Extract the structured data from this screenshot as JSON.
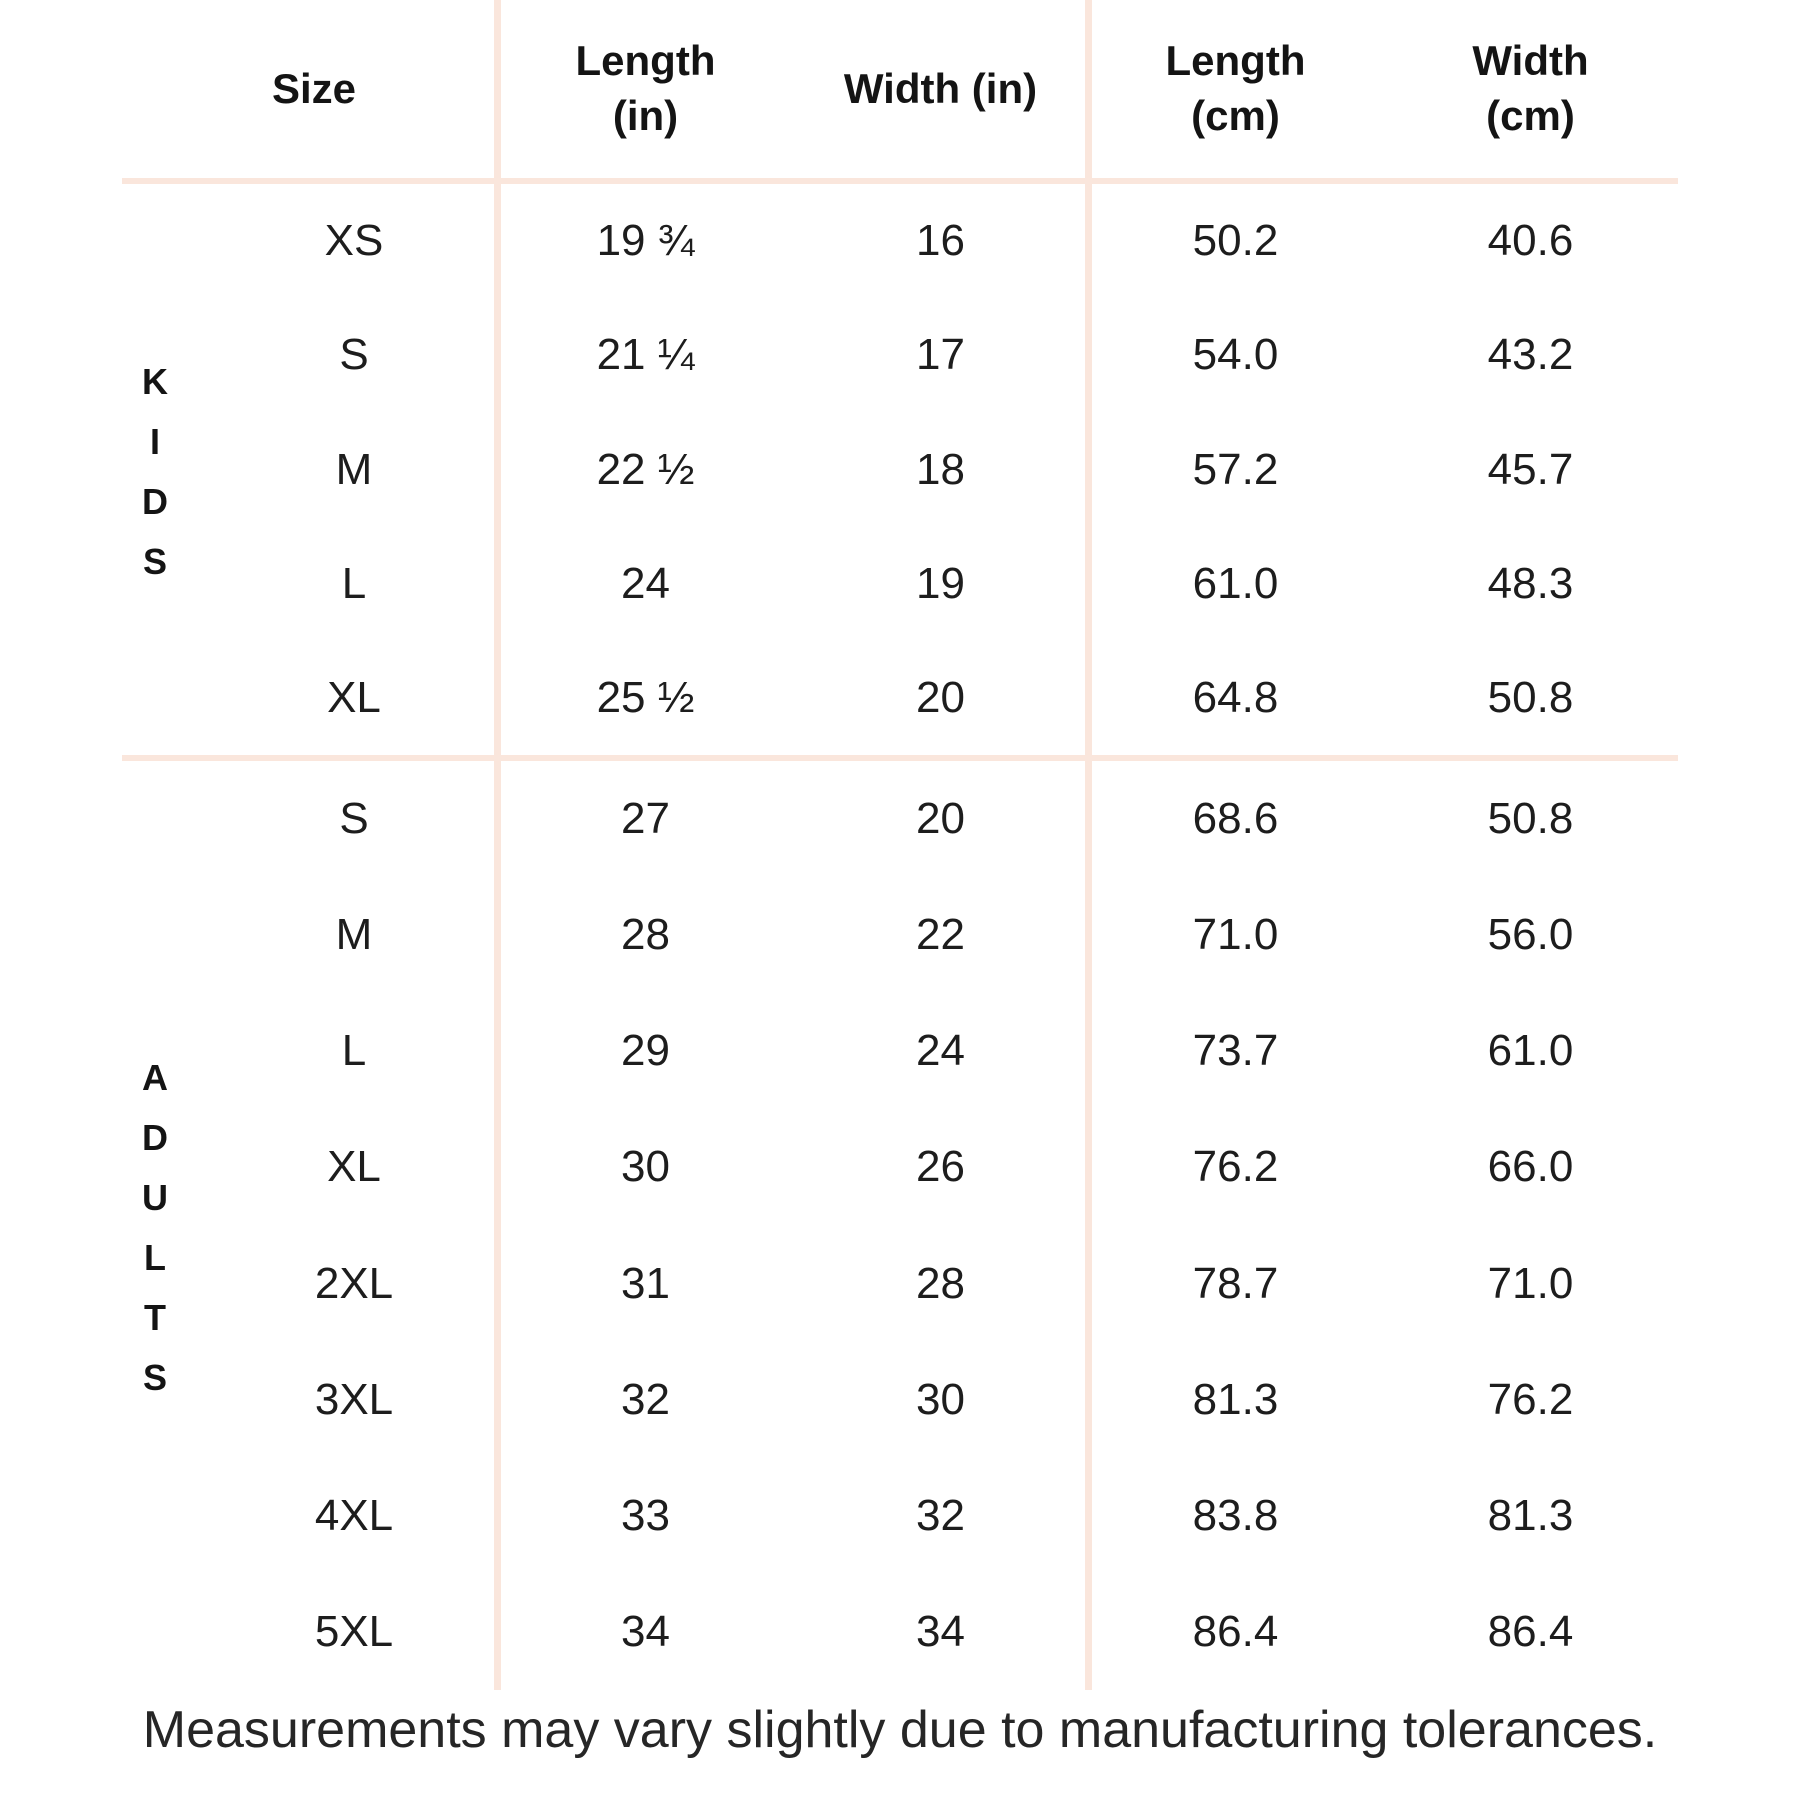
{
  "table": {
    "columns": [
      "Size",
      "Length\n(in)",
      "Width (in)",
      "Length\n(cm)",
      "Width\n(cm)"
    ],
    "groups": [
      {
        "label": "KIDS",
        "rows": [
          {
            "size": "XS",
            "length_in": "19 ¾",
            "width_in": "16",
            "length_cm": "50.2",
            "width_cm": "40.6"
          },
          {
            "size": "S",
            "length_in": "21 ¼",
            "width_in": "17",
            "length_cm": "54.0",
            "width_cm": "43.2"
          },
          {
            "size": "M",
            "length_in": "22 ½",
            "width_in": "18",
            "length_cm": "57.2",
            "width_cm": "45.7"
          },
          {
            "size": "L",
            "length_in": "24",
            "width_in": "19",
            "length_cm": "61.0",
            "width_cm": "48.3"
          },
          {
            "size": "XL",
            "length_in": "25 ½",
            "width_in": "20",
            "length_cm": "64.8",
            "width_cm": "50.8"
          }
        ]
      },
      {
        "label": "ADULTS",
        "rows": [
          {
            "size": "S",
            "length_in": "27",
            "width_in": "20",
            "length_cm": "68.6",
            "width_cm": "50.8"
          },
          {
            "size": "M",
            "length_in": "28",
            "width_in": "22",
            "length_cm": "71.0",
            "width_cm": "56.0"
          },
          {
            "size": "L",
            "length_in": "29",
            "width_in": "24",
            "length_cm": "73.7",
            "width_cm": "61.0"
          },
          {
            "size": "XL",
            "length_in": "30",
            "width_in": "26",
            "length_cm": "76.2",
            "width_cm": "66.0"
          },
          {
            "size": "2XL",
            "length_in": "31",
            "width_in": "28",
            "length_cm": "78.7",
            "width_cm": "71.0"
          },
          {
            "size": "3XL",
            "length_in": "32",
            "width_in": "30",
            "length_cm": "81.3",
            "width_cm": "76.2"
          },
          {
            "size": "4XL",
            "length_in": "33",
            "width_in": "32",
            "length_cm": "83.8",
            "width_cm": "81.3"
          },
          {
            "size": "5XL",
            "length_in": "34",
            "width_in": "34",
            "length_cm": "86.4",
            "width_cm": "86.4"
          }
        ]
      }
    ]
  },
  "footer": {
    "note": "Measurements may vary slightly due to manufacturing tolerances."
  },
  "colors": {
    "line": "#fae6dc",
    "text": "#1d1d1d"
  }
}
